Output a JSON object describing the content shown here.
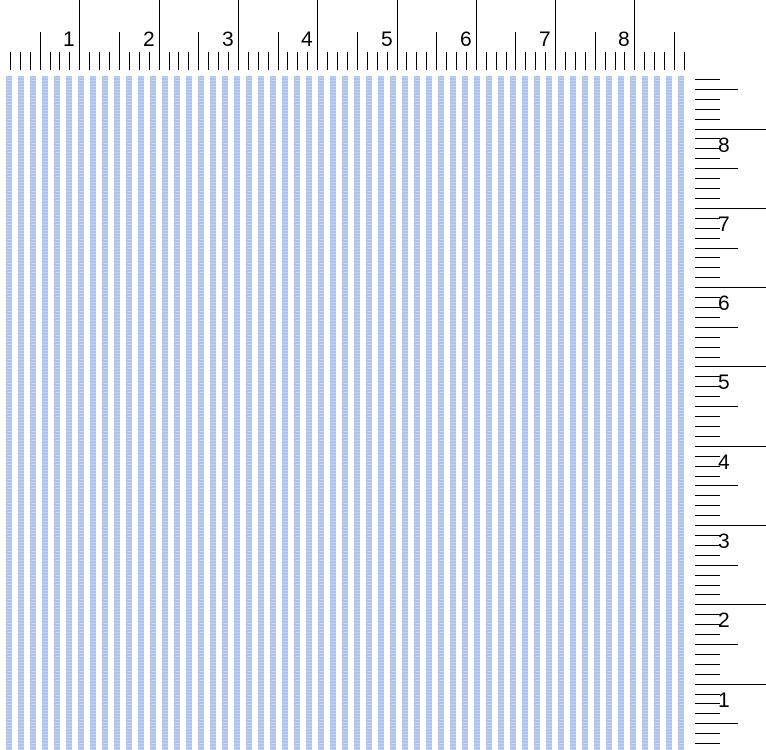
{
  "ruler": {
    "unit": "inch",
    "top_labels": [
      "1",
      "2",
      "3",
      "4",
      "5",
      "6",
      "7",
      "8"
    ],
    "right_labels": [
      "8",
      "7",
      "6",
      "5",
      "4",
      "3",
      "2",
      "1"
    ]
  },
  "swatch": {
    "pattern": "vertical pin stripe",
    "stripe_color": "#aec3ec",
    "ground_color": "#ffffff"
  }
}
